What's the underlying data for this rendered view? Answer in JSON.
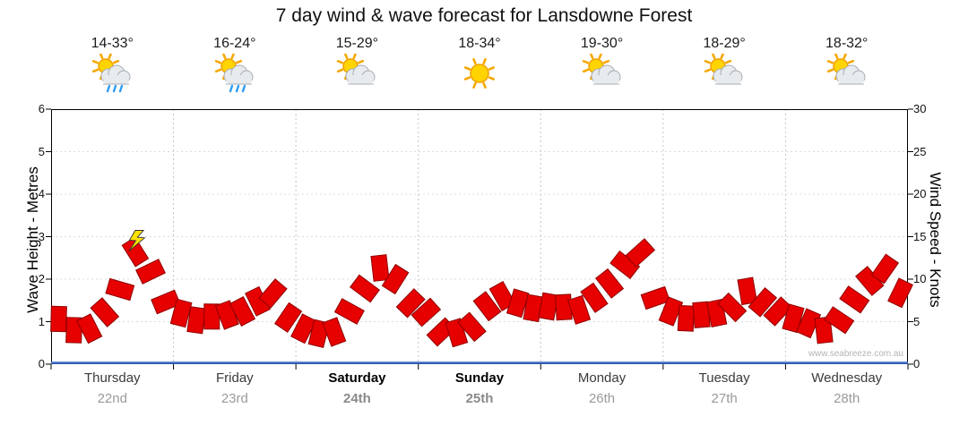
{
  "title": "7 day wind & wave forecast for Lansdowne Forest",
  "watermark": "www.seabreeze.com.au",
  "axes": {
    "left": {
      "label": "Wave Height - Metres",
      "ticks": [
        0,
        1,
        2,
        3,
        4,
        5,
        6
      ]
    },
    "right": {
      "label": "Wind Speed - Knots",
      "ticks": [
        0,
        5,
        10,
        15,
        20,
        25,
        30
      ]
    }
  },
  "days": [
    {
      "name": "Thursday",
      "date": "22nd",
      "temp": "14-33°",
      "icon": "sun-cloud-rain",
      "weekend": false
    },
    {
      "name": "Friday",
      "date": "23rd",
      "temp": "16-24°",
      "icon": "sun-cloud-rain",
      "weekend": false
    },
    {
      "name": "Saturday",
      "date": "24th",
      "temp": "15-29°",
      "icon": "sun-cloud",
      "weekend": true
    },
    {
      "name": "Sunday",
      "date": "25th",
      "temp": "18-34°",
      "icon": "sun",
      "weekend": true
    },
    {
      "name": "Monday",
      "date": "26th",
      "temp": "19-30°",
      "icon": "sun-cloud",
      "weekend": false
    },
    {
      "name": "Tuesday",
      "date": "27th",
      "temp": "18-29°",
      "icon": "sun-cloud",
      "weekend": false
    },
    {
      "name": "Wednesday",
      "date": "28th",
      "temp": "18-32°",
      "icon": "sun-cloud",
      "weekend": false
    }
  ],
  "chart_data": {
    "type": "line",
    "title": "7 day wind & wave forecast for Lansdowne Forest",
    "categories_days": [
      "Thursday 22nd",
      "Friday 23rd",
      "Saturday 24th",
      "Sunday 25th",
      "Monday 26th",
      "Tuesday 27th",
      "Wednesday 28th"
    ],
    "samples_per_day": 8,
    "ylabel_left": "Wave Height - Metres",
    "ylabel_right": "Wind Speed - Knots",
    "ylim_left_metres": [
      0,
      6
    ],
    "ylim_right_knots": [
      0,
      30
    ],
    "grid": true,
    "series": [
      {
        "name": "Wind Speed (knots)",
        "color": "#e60000",
        "values": [
          5,
          4,
          4.5,
          6,
          9,
          13,
          11,
          7,
          6,
          5.5,
          5.5,
          6,
          6,
          7.5,
          8,
          5.5,
          4.5,
          3.5,
          4,
          6,
          9,
          11,
          10,
          7.5,
          6,
          4,
          3.5,
          4.5,
          6.5,
          8,
          7.5,
          6.5,
          7,
          6.5,
          6.5,
          7.5,
          9.5,
          12,
          13,
          8,
          6,
          5.5,
          5.5,
          6,
          7,
          8.5,
          7.5,
          6,
          5.5,
          4.5,
          4,
          5.5,
          7.5,
          10,
          11,
          8.5
        ]
      }
    ],
    "storm_flag_index": 5,
    "storm_flag_color": "#ffe200"
  }
}
